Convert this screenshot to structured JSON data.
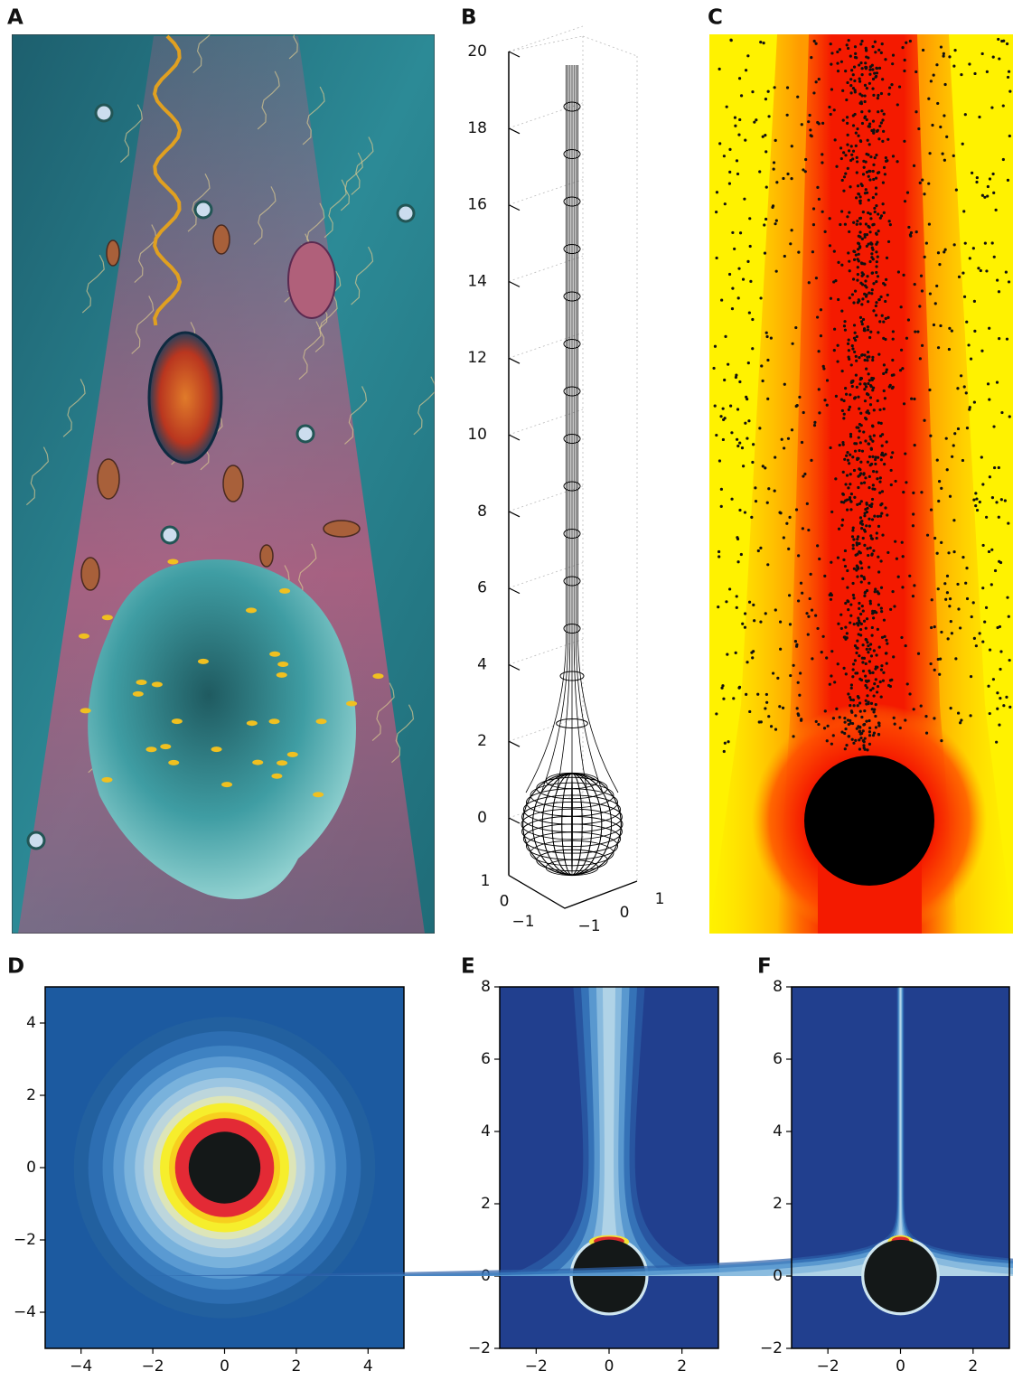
{
  "chart_data": [
    {
      "type": "illustration",
      "label": "A"
    },
    {
      "type": "surface3d",
      "label": "B",
      "zlim": [
        -1.5,
        20
      ],
      "zticks": [
        0,
        2,
        4,
        6,
        8,
        10,
        12,
        14,
        16,
        18,
        20
      ],
      "xlim": [
        -1,
        1
      ],
      "xticks": [
        1,
        0,
        {
          "value": -1,
          "label": "−1"
        }
      ],
      "ylim": [
        -1,
        1
      ],
      "yticks": [
        {
          "value": -1,
          "label": "−1"
        },
        0,
        1
      ]
    },
    {
      "type": "heatmap",
      "label": "C"
    },
    {
      "type": "contour",
      "label": "D",
      "xlim": [
        -5,
        5
      ],
      "ylim": [
        -5,
        5
      ],
      "xticks": [
        {
          "value": -4,
          "label": "−4"
        },
        {
          "value": -2,
          "label": "−2"
        },
        0,
        2,
        4
      ],
      "yticks": [
        {
          "value": -4,
          "label": "−4"
        },
        {
          "value": -2,
          "label": "−2"
        },
        0,
        2,
        4
      ]
    },
    {
      "type": "plume",
      "label": "E",
      "xlim": [
        -3,
        3
      ],
      "ylim": [
        -2,
        8
      ],
      "xticks": [
        {
          "value": -2,
          "label": "−2"
        },
        0,
        2
      ],
      "yticks": [
        {
          "value": -2,
          "label": "−2"
        },
        0,
        2,
        4,
        6,
        8
      ]
    },
    {
      "type": "plume",
      "label": "F",
      "xlim": [
        -3,
        3
      ],
      "ylim": [
        -2,
        8
      ],
      "xticks": [
        {
          "value": -2,
          "label": "−2"
        },
        0,
        2
      ],
      "yticks": [
        {
          "value": -2,
          "label": "−2"
        },
        0,
        2,
        4,
        6,
        8
      ]
    }
  ]
}
